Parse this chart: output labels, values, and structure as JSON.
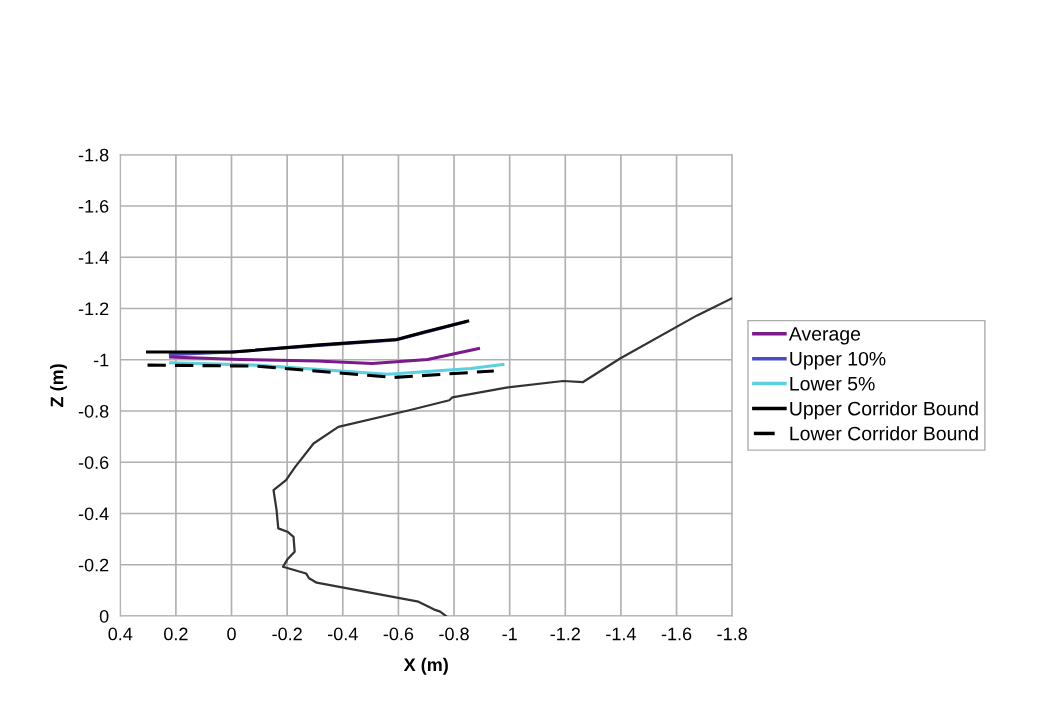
{
  "chart_data": {
    "type": "line",
    "xlabel": "X (m)",
    "ylabel": "Z (m)",
    "xlim": [
      0.4,
      -1.8
    ],
    "xticks": [
      0.4,
      0.2,
      0,
      -0.2,
      -0.4,
      -0.6,
      -0.8,
      -1,
      -1.2,
      -1.4,
      -1.6,
      -1.8
    ],
    "ylim": [
      0,
      -1.8
    ],
    "yticks": [
      0,
      -0.2,
      -0.4,
      -0.6,
      -0.8,
      -1,
      -1.2,
      -1.4,
      -1.6,
      -1.8
    ],
    "grid": true,
    "legend": "right",
    "marker": "none",
    "series": [
      {
        "name": "Average",
        "color": "#7b1a8a",
        "line_style": "solid",
        "x": [
          0.219,
          -0.029,
          -0.306,
          -0.506,
          -0.705,
          -0.888
        ],
        "values": [
          -1.011,
          -1.001,
          -0.995,
          -0.985,
          -1.001,
          -1.044
        ]
      },
      {
        "name": "Upper 10%",
        "color": "#4b4bc4",
        "line_style": "solid",
        "x": [
          0.22,
          0,
          -0.3,
          -0.59,
          -0.69,
          -0.84
        ],
        "values": [
          -1.02,
          -1.03,
          -1.055,
          -1.077,
          -1.105,
          -1.148
        ]
      },
      {
        "name": "Lower 5%",
        "color": "#5bd0e0",
        "line_style": "solid",
        "x": [
          0.219,
          -0.085,
          -0.561,
          -0.86,
          -0.976
        ],
        "values": [
          -0.988,
          -0.979,
          -0.943,
          -0.966,
          -0.982
        ]
      },
      {
        "color": "#333333",
        "line_style": "solid",
        "x": [
          -0.771,
          -0.75,
          -0.727,
          -0.672,
          -0.306,
          -0.279,
          -0.268,
          -0.185,
          -0.201,
          -0.227,
          -0.223,
          -0.201,
          -0.168,
          -0.162,
          -0.151,
          -0.196,
          -0.229,
          -0.295,
          -0.384,
          -0.639,
          -0.783,
          -0.794,
          -0.993,
          -1.192,
          -1.264,
          -1.397,
          -1.674,
          -1.8
        ],
        "values": [
          0,
          -0.017,
          -0.026,
          -0.056,
          -0.13,
          -0.147,
          -0.166,
          -0.192,
          -0.221,
          -0.251,
          -0.309,
          -0.329,
          -0.342,
          -0.413,
          -0.491,
          -0.53,
          -0.582,
          -0.673,
          -0.738,
          -0.803,
          -0.842,
          -0.853,
          -0.892,
          -0.917,
          -0.913,
          -1.005,
          -1.173,
          -1.24
        ]
      },
      {
        "name": "Upper Corridor Bound",
        "color": "#000000",
        "line_style": "solid",
        "x": [
          0.302,
          -0.007,
          -0.306,
          -0.594,
          -0.694,
          -0.849
        ],
        "values": [
          -1.03,
          -1.03,
          -1.057,
          -1.079,
          -1.108,
          -1.151
        ]
      },
      {
        "name": "Lower Corridor Bound",
        "color": "#000000",
        "line_style": "dashed",
        "x": [
          0.302,
          -0.085,
          -0.583,
          -0.943
        ],
        "values": [
          -0.979,
          -0.975,
          -0.931,
          -0.956
        ]
      }
    ]
  }
}
